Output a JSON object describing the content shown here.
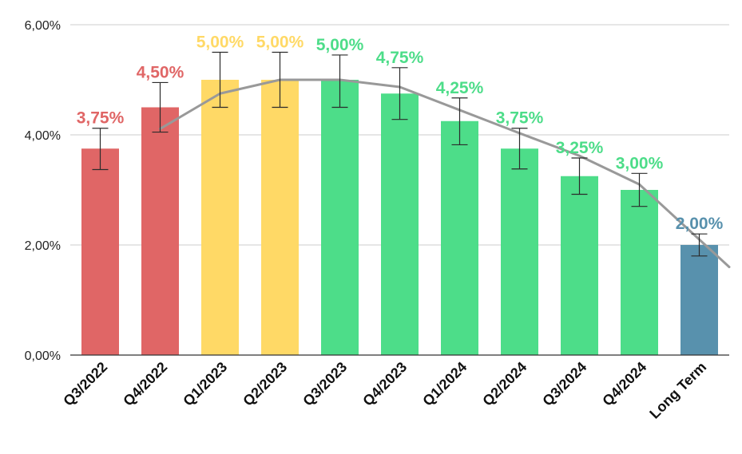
{
  "chart_data": {
    "type": "bar",
    "title": "",
    "xlabel": "",
    "ylabel": "",
    "ylim": [
      0,
      0.06
    ],
    "yticks": [
      {
        "value": 0.0,
        "label": "0,00%"
      },
      {
        "value": 0.02,
        "label": "2,00%"
      },
      {
        "value": 0.04,
        "label": "4,00%"
      },
      {
        "value": 0.06,
        "label": "6,00%"
      }
    ],
    "grid": true,
    "legend": "none",
    "categories": [
      "Q3/2022",
      "Q4/2022",
      "Q1/2023",
      "Q2/2023",
      "Q3/2023",
      "Q4/2023",
      "Q1/2024",
      "Q2/2024",
      "Q3/2024",
      "Q4/2024",
      "Long Term"
    ],
    "values": [
      0.0375,
      0.045,
      0.05,
      0.05,
      0.05,
      0.0475,
      0.0425,
      0.0375,
      0.0325,
      0.03,
      0.02
    ],
    "data_labels": [
      "3,75%",
      "4,50%",
      "5,00%",
      "5,00%",
      "5,00%",
      "4,75%",
      "4,25%",
      "3,75%",
      "3,25%",
      "3,00%",
      "2,00%"
    ],
    "colors": [
      "#e06666",
      "#e06666",
      "#ffd966",
      "#ffd966",
      "#4ddd89",
      "#4ddd89",
      "#4ddd89",
      "#4ddd89",
      "#4ddd89",
      "#4ddd89",
      "#5891ad"
    ],
    "error_bars": [
      [
        0.0337,
        0.0412
      ],
      [
        0.0405,
        0.0495
      ],
      [
        0.045,
        0.055
      ],
      [
        0.045,
        0.055
      ],
      [
        0.045,
        0.0545
      ],
      [
        0.0428,
        0.0522
      ],
      [
        0.0382,
        0.0467
      ],
      [
        0.0338,
        0.0412
      ],
      [
        0.0292,
        0.0358
      ],
      [
        0.027,
        0.033
      ],
      [
        0.018,
        0.022
      ]
    ],
    "trendline": {
      "color": "#999999",
      "x_start": "Q4/2022",
      "x_end": "Long Term",
      "points": [
        [
          "Q4/2022",
          0.0411
        ],
        [
          "Q1/2023",
          0.0475
        ],
        [
          "Q2/2023",
          0.05
        ],
        [
          "Q3/2023",
          0.05
        ],
        [
          "Q4/2023",
          0.0487
        ],
        [
          "Q1/2024",
          0.0445
        ],
        [
          "Q2/2024",
          0.0403
        ],
        [
          "Q3/2024",
          0.0362
        ],
        [
          "Q4/2024",
          0.031
        ],
        [
          "Long Term",
          0.021
        ]
      ]
    }
  }
}
